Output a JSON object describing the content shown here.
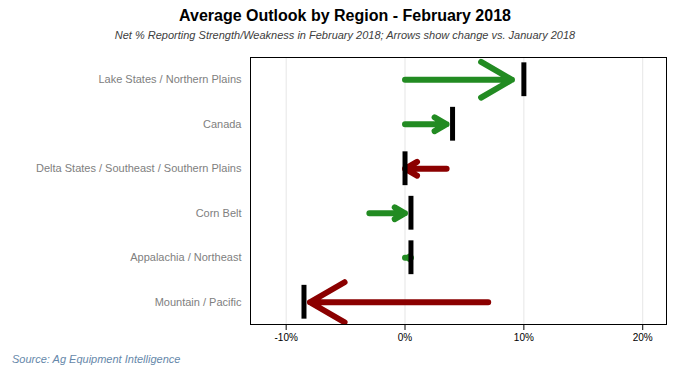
{
  "chart_data": {
    "type": "arrow",
    "title": "Average Outlook by Region - February 2018",
    "subtitle": "Net % Reporting Strength/Weakness in February 2018; Arrows show change vs. January 2018",
    "source": "Source: Ag Equipment Intelligence",
    "categories": [
      "Lake States / Northern Plains",
      "Canada",
      "Delta States / Southeast / Southern Plains",
      "Corn Belt",
      "Appalachia / Northeast",
      "Mountain / Pacific"
    ],
    "arrow_start": [
      0.0,
      0.0,
      3.5,
      -3.0,
      0.0,
      7.0
    ],
    "arrow_end": [
      9.0,
      3.5,
      0.0,
      0.0,
      0.5,
      -8.0
    ],
    "values": [
      10.0,
      4.0,
      0.0,
      0.5,
      0.5,
      -8.5
    ],
    "colors": [
      "#228B22",
      "#228B22",
      "#8B0000",
      "#228B22",
      "#228B22",
      "#8B0000"
    ],
    "color": "#000000",
    "xlim": [
      -13,
      22
    ],
    "xticks": [
      {
        "value": -10,
        "label": "-10%"
      },
      {
        "value": 0,
        "label": "0%"
      },
      {
        "value": 10,
        "label": "10%"
      },
      {
        "value": 20,
        "label": "20%"
      }
    ],
    "grid": true
  }
}
